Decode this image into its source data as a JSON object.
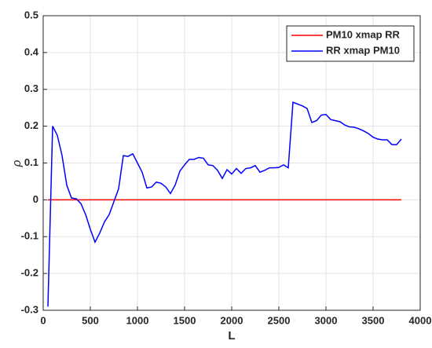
{
  "chart_data": {
    "type": "line",
    "xlabel": "L",
    "ylabel": "ρ",
    "xlim": [
      0,
      4000
    ],
    "xticks": [
      0,
      500,
      1000,
      1500,
      2000,
      2500,
      3000,
      3500,
      4000
    ],
    "ylim": [
      -0.3,
      0.5
    ],
    "yticks": [
      -0.3,
      -0.2,
      -0.1,
      0,
      0.1,
      0.2,
      0.3,
      0.4,
      0.5
    ],
    "grid": true,
    "legend": "upper-right",
    "series": [
      {
        "name": "PM10 xmap RR",
        "color": "#ff0000",
        "x": [
          50,
          3800
        ],
        "values": [
          0,
          0
        ]
      },
      {
        "name": "RR xmap PM10",
        "color": "#0000ff",
        "x": [
          50,
          100,
          150,
          200,
          250,
          300,
          350,
          400,
          450,
          500,
          550,
          600,
          650,
          700,
          750,
          800,
          850,
          900,
          950,
          1000,
          1050,
          1100,
          1150,
          1200,
          1250,
          1300,
          1350,
          1400,
          1450,
          1500,
          1550,
          1600,
          1650,
          1700,
          1750,
          1800,
          1850,
          1900,
          1950,
          2000,
          2050,
          2100,
          2150,
          2200,
          2250,
          2300,
          2350,
          2400,
          2450,
          2500,
          2550,
          2600,
          2650,
          2700,
          2750,
          2800,
          2850,
          2900,
          2950,
          3000,
          3050,
          3100,
          3150,
          3200,
          3250,
          3300,
          3350,
          3400,
          3450,
          3500,
          3550,
          3600,
          3650,
          3700,
          3750,
          3800
        ],
        "values": [
          -0.29,
          0.2,
          0.175,
          0.12,
          0.04,
          0.005,
          0.003,
          -0.01,
          -0.04,
          -0.08,
          -0.115,
          -0.09,
          -0.06,
          -0.04,
          -0.005,
          0.03,
          0.12,
          0.118,
          0.125,
          0.1,
          0.075,
          0.032,
          0.035,
          0.048,
          0.045,
          0.035,
          0.017,
          0.04,
          0.078,
          0.095,
          0.11,
          0.11,
          0.115,
          0.113,
          0.095,
          0.093,
          0.08,
          0.058,
          0.082,
          0.07,
          0.085,
          0.072,
          0.085,
          0.087,
          0.093,
          0.075,
          0.08,
          0.087,
          0.087,
          0.088,
          0.095,
          0.087,
          0.265,
          0.26,
          0.255,
          0.248,
          0.21,
          0.215,
          0.23,
          0.232,
          0.218,
          0.215,
          0.212,
          0.203,
          0.198,
          0.197,
          0.193,
          0.187,
          0.18,
          0.17,
          0.165,
          0.163,
          0.163,
          0.15,
          0.15,
          0.165
        ]
      }
    ]
  }
}
